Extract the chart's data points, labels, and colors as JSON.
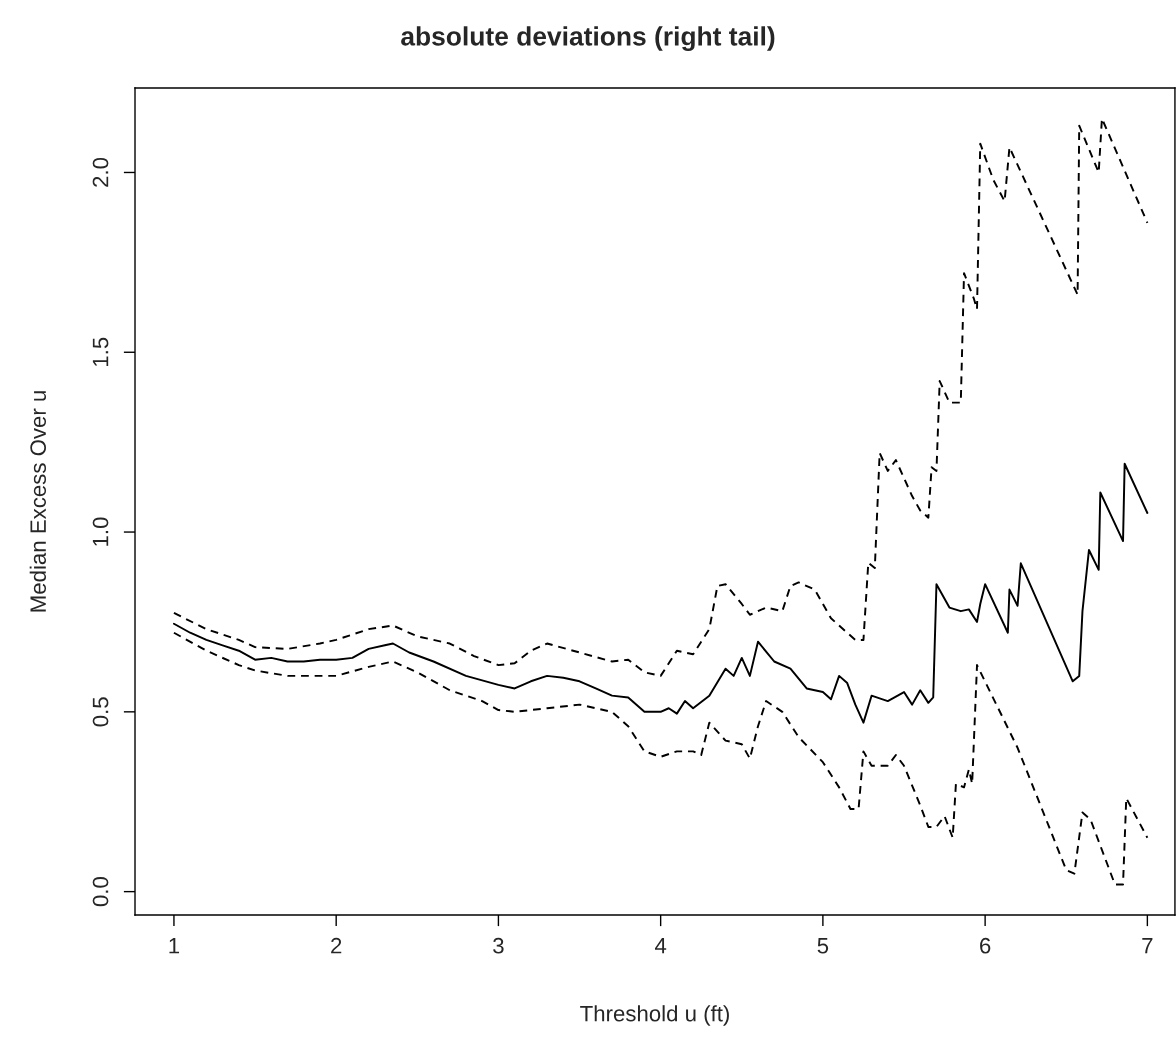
{
  "chart_data": {
    "type": "line",
    "title": "absolute deviations (right tail)",
    "xlabel": "Threshold u (ft)",
    "ylabel": "Median Excess Over u",
    "xlim": [
      0.76,
      7.17
    ],
    "ylim": [
      -0.065,
      2.235
    ],
    "xticks": [
      1,
      2,
      3,
      4,
      5,
      6,
      7
    ],
    "yticks": [
      {
        "value": 0,
        "label": "0.0"
      },
      {
        "value": 0.5,
        "label": "0.5"
      },
      {
        "value": 1,
        "label": "1.0"
      },
      {
        "value": 1.5,
        "label": "1.5"
      },
      {
        "value": 2,
        "label": "2.0"
      }
    ],
    "grid": false,
    "series": [
      {
        "color": "#000000",
        "line_style": "solid",
        "x": [
          1.0,
          1.1,
          1.2,
          1.3,
          1.4,
          1.5,
          1.6,
          1.7,
          1.8,
          1.9,
          2.0,
          2.1,
          2.2,
          2.3,
          2.35,
          2.45,
          2.6,
          2.8,
          3.0,
          3.1,
          3.2,
          3.3,
          3.4,
          3.5,
          3.6,
          3.7,
          3.8,
          3.9,
          4.0,
          4.05,
          4.1,
          4.15,
          4.2,
          4.3,
          4.4,
          4.45,
          4.5,
          4.55,
          4.6,
          4.7,
          4.8,
          4.9,
          5.0,
          5.05,
          5.1,
          5.15,
          5.2,
          5.25,
          5.3,
          5.4,
          5.5,
          5.55,
          5.6,
          5.65,
          5.68,
          5.7,
          5.78,
          5.85,
          5.9,
          5.95,
          5.97,
          6.0,
          6.14,
          6.15,
          6.2,
          6.22,
          6.54,
          6.58,
          6.6,
          6.64,
          6.7,
          6.71,
          6.85,
          6.86,
          7.0
        ],
        "values": [
          0.745,
          0.72,
          0.7,
          0.685,
          0.67,
          0.645,
          0.65,
          0.64,
          0.64,
          0.645,
          0.645,
          0.65,
          0.675,
          0.685,
          0.69,
          0.665,
          0.64,
          0.6,
          0.575,
          0.565,
          0.585,
          0.6,
          0.595,
          0.585,
          0.565,
          0.545,
          0.54,
          0.5,
          0.5,
          0.51,
          0.495,
          0.53,
          0.51,
          0.545,
          0.62,
          0.6,
          0.65,
          0.6,
          0.695,
          0.64,
          0.62,
          0.565,
          0.555,
          0.535,
          0.6,
          0.58,
          0.52,
          0.47,
          0.545,
          0.53,
          0.555,
          0.52,
          0.56,
          0.525,
          0.54,
          0.855,
          0.79,
          0.78,
          0.785,
          0.75,
          0.8,
          0.855,
          0.72,
          0.84,
          0.795,
          0.913,
          0.585,
          0.6,
          0.78,
          0.95,
          0.895,
          1.11,
          0.975,
          1.19,
          1.053
        ]
      },
      {
        "color": "#000000",
        "line_style": "dashed",
        "x": [
          1.0,
          1.2,
          1.4,
          1.5,
          1.7,
          1.9,
          2.0,
          2.2,
          2.35,
          2.5,
          2.7,
          2.85,
          3.0,
          3.1,
          3.2,
          3.3,
          3.5,
          3.7,
          3.8,
          3.9,
          4.0,
          4.1,
          4.2,
          4.3,
          4.35,
          4.4,
          4.5,
          4.55,
          4.65,
          4.75,
          4.8,
          4.85,
          4.95,
          5.05,
          5.15,
          5.2,
          5.25,
          5.28,
          5.32,
          5.35,
          5.4,
          5.45,
          5.55,
          5.6,
          5.65,
          5.67,
          5.7,
          5.72,
          5.78,
          5.85,
          5.87,
          5.93,
          5.95,
          5.97,
          6.05,
          6.12,
          6.15,
          6.57,
          6.58,
          6.7,
          6.72,
          7.0
        ],
        "values": [
          0.775,
          0.73,
          0.7,
          0.68,
          0.675,
          0.69,
          0.7,
          0.73,
          0.74,
          0.71,
          0.69,
          0.655,
          0.63,
          0.635,
          0.67,
          0.69,
          0.665,
          0.64,
          0.645,
          0.61,
          0.6,
          0.67,
          0.66,
          0.73,
          0.85,
          0.855,
          0.8,
          0.77,
          0.79,
          0.78,
          0.85,
          0.86,
          0.84,
          0.76,
          0.72,
          0.7,
          0.7,
          0.915,
          0.9,
          1.22,
          1.17,
          1.2,
          1.1,
          1.06,
          1.04,
          1.18,
          1.17,
          1.42,
          1.36,
          1.36,
          1.72,
          1.65,
          1.62,
          2.08,
          1.98,
          1.92,
          2.07,
          1.66,
          2.13,
          2.0,
          2.15,
          1.86
        ]
      },
      {
        "color": "#000000",
        "line_style": "dashed",
        "x": [
          1.0,
          1.2,
          1.4,
          1.5,
          1.7,
          2.0,
          2.2,
          2.35,
          2.5,
          2.7,
          2.9,
          3.0,
          3.1,
          3.3,
          3.5,
          3.7,
          3.8,
          3.9,
          4.0,
          4.1,
          4.2,
          4.25,
          4.3,
          4.4,
          4.5,
          4.55,
          4.6,
          4.65,
          4.75,
          4.85,
          5.0,
          5.1,
          5.17,
          5.22,
          5.25,
          5.3,
          5.4,
          5.45,
          5.5,
          5.6,
          5.65,
          5.7,
          5.75,
          5.8,
          5.82,
          5.87,
          5.9,
          5.92,
          5.95,
          6.2,
          6.5,
          6.55,
          6.6,
          6.65,
          6.8,
          6.85,
          6.87,
          7.0
        ],
        "values": [
          0.72,
          0.67,
          0.63,
          0.615,
          0.6,
          0.6,
          0.625,
          0.64,
          0.61,
          0.56,
          0.53,
          0.505,
          0.5,
          0.51,
          0.52,
          0.5,
          0.46,
          0.39,
          0.375,
          0.39,
          0.39,
          0.38,
          0.47,
          0.42,
          0.41,
          0.37,
          0.46,
          0.53,
          0.5,
          0.43,
          0.36,
          0.29,
          0.23,
          0.23,
          0.39,
          0.35,
          0.35,
          0.38,
          0.35,
          0.24,
          0.18,
          0.18,
          0.21,
          0.15,
          0.3,
          0.29,
          0.34,
          0.3,
          0.63,
          0.4,
          0.06,
          0.05,
          0.22,
          0.2,
          0.02,
          0.02,
          0.26,
          0.15
        ]
      }
    ]
  }
}
